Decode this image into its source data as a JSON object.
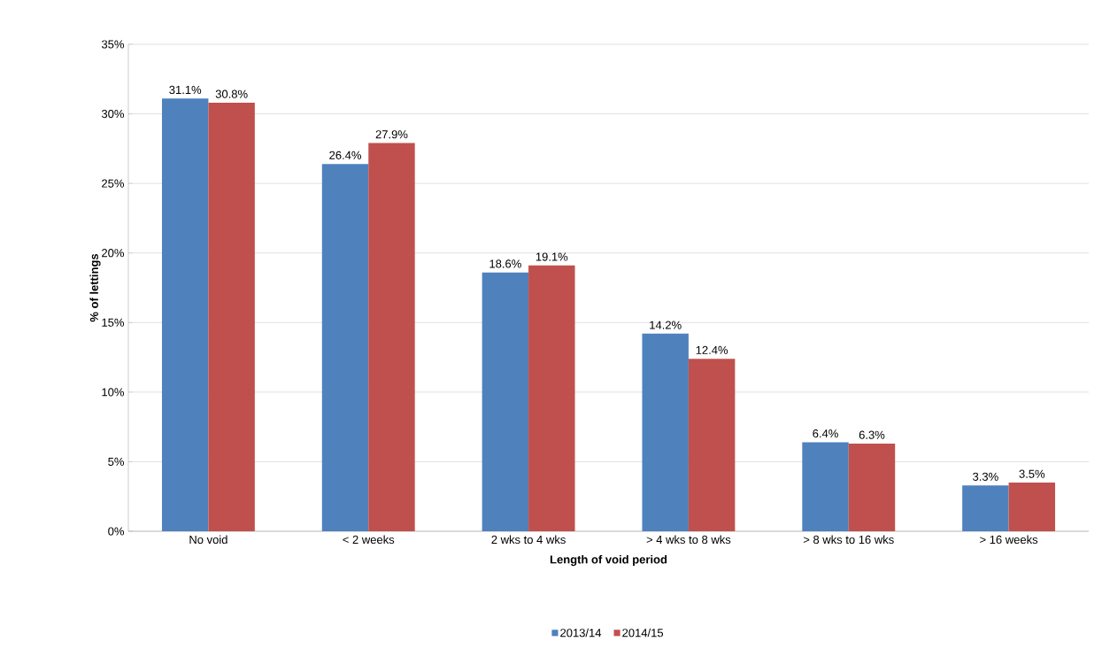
{
  "chart_data": {
    "type": "bar",
    "xlabel": "Length of void period",
    "ylabel": "% of lettings",
    "categories": [
      "No void",
      "< 2 weeks",
      "2 wks to 4 wks",
      "> 4 wks to 8 wks",
      "> 8 wks to 16 wks",
      "> 16 weeks"
    ],
    "series": [
      {
        "name": "2013/14",
        "color": "#4f81bd",
        "values": [
          31.1,
          26.4,
          18.6,
          14.2,
          6.4,
          3.3
        ],
        "value_labels": [
          "31.1%",
          "26.4%",
          "18.6%",
          "14.2%",
          "6.4%",
          "3.3%"
        ]
      },
      {
        "name": "2014/15",
        "color": "#c0504d",
        "values": [
          30.8,
          27.9,
          19.1,
          12.4,
          6.3,
          3.5
        ],
        "value_labels": [
          "30.8%",
          "27.9%",
          "19.1%",
          "12.4%",
          "6.3%",
          "3.5%"
        ]
      }
    ],
    "ylim": [
      0,
      35
    ],
    "yticks": [
      {
        "value": 0,
        "label": "0%"
      },
      {
        "value": 5,
        "label": "5%"
      },
      {
        "value": 10,
        "label": "10%"
      },
      {
        "value": 15,
        "label": "15%"
      },
      {
        "value": 20,
        "label": "20%"
      },
      {
        "value": 25,
        "label": "25%"
      },
      {
        "value": 30,
        "label": "30%"
      },
      {
        "value": 35,
        "label": "35%"
      }
    ],
    "grid": "y",
    "legend": "bottom"
  }
}
